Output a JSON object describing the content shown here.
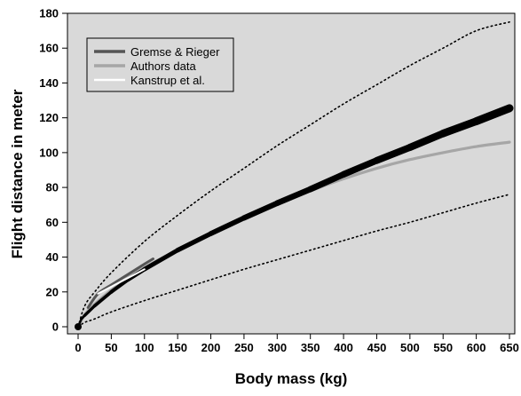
{
  "chart_data": {
    "type": "line",
    "title": "",
    "xlabel": "Body mass (kg)",
    "ylabel": "Flight distance in meter",
    "xlim": [
      0,
      650
    ],
    "ylim": [
      0,
      180
    ],
    "xticks": [
      0,
      50,
      100,
      150,
      200,
      250,
      300,
      350,
      400,
      450,
      500,
      550,
      600,
      650
    ],
    "yticks": [
      0,
      20,
      40,
      60,
      80,
      100,
      120,
      140,
      160,
      180
    ],
    "grid": false,
    "background_color": "#d9d9d9",
    "legend": {
      "position": "top-left",
      "entries": [
        {
          "label": "Gremse & Rieger",
          "color": "#555555"
        },
        {
          "label": "Authors data",
          "color": "#a6a6a6"
        },
        {
          "label": "Kanstrup et al.",
          "color": "#ffffff"
        }
      ]
    },
    "series": [
      {
        "name": "Gremse & Rieger",
        "color": "#555555",
        "x": [
          15,
          30,
          50,
          75,
          100,
          113
        ],
        "y": [
          11,
          19,
          24,
          30,
          36,
          39
        ]
      },
      {
        "name": "Authors data",
        "color": "#a6a6a6",
        "x": [
          0,
          10,
          25,
          50,
          75,
          100,
          150,
          200,
          250,
          300,
          350,
          400,
          450,
          500,
          550,
          600,
          650
        ],
        "y": [
          0,
          7,
          13,
          21,
          28,
          34,
          44,
          53,
          62,
          70,
          78,
          85,
          91,
          96,
          100,
          103.5,
          106
        ]
      },
      {
        "name": "Kanstrup et al.",
        "color": "#ffffff",
        "x": [
          30,
          50,
          75,
          100
        ],
        "y": [
          19,
          23,
          28,
          33
        ]
      },
      {
        "name": "",
        "style": "fitted",
        "color": "#000000",
        "x": [
          0,
          5,
          10,
          25,
          50,
          75,
          100,
          150,
          200,
          250,
          300,
          350,
          400,
          450,
          500,
          550,
          600,
          650
        ],
        "y": [
          0,
          4.5,
          6.5,
          12,
          20,
          27,
          33,
          44,
          53.5,
          62.5,
          71,
          79,
          87.5,
          95.5,
          103,
          111,
          118,
          125.5
        ]
      },
      {
        "name": "",
        "style": "upper-bound",
        "color": "#000000",
        "x": [
          0,
          10,
          25,
          50,
          100,
          150,
          200,
          250,
          300,
          350,
          400,
          450,
          500,
          550,
          600,
          650
        ],
        "y": [
          0,
          12,
          20,
          31,
          49,
          64,
          78,
          91,
          104,
          116,
          128,
          139,
          150,
          160,
          170,
          175
        ]
      },
      {
        "name": "",
        "style": "lower-bound",
        "color": "#000000",
        "x": [
          0,
          10,
          25,
          50,
          100,
          150,
          200,
          250,
          300,
          350,
          400,
          450,
          500,
          550,
          600,
          650
        ],
        "y": [
          0,
          2.5,
          4.5,
          8.5,
          15,
          21,
          27,
          33,
          38.5,
          44,
          49.5,
          55,
          60,
          65.5,
          71,
          76
        ]
      }
    ]
  }
}
